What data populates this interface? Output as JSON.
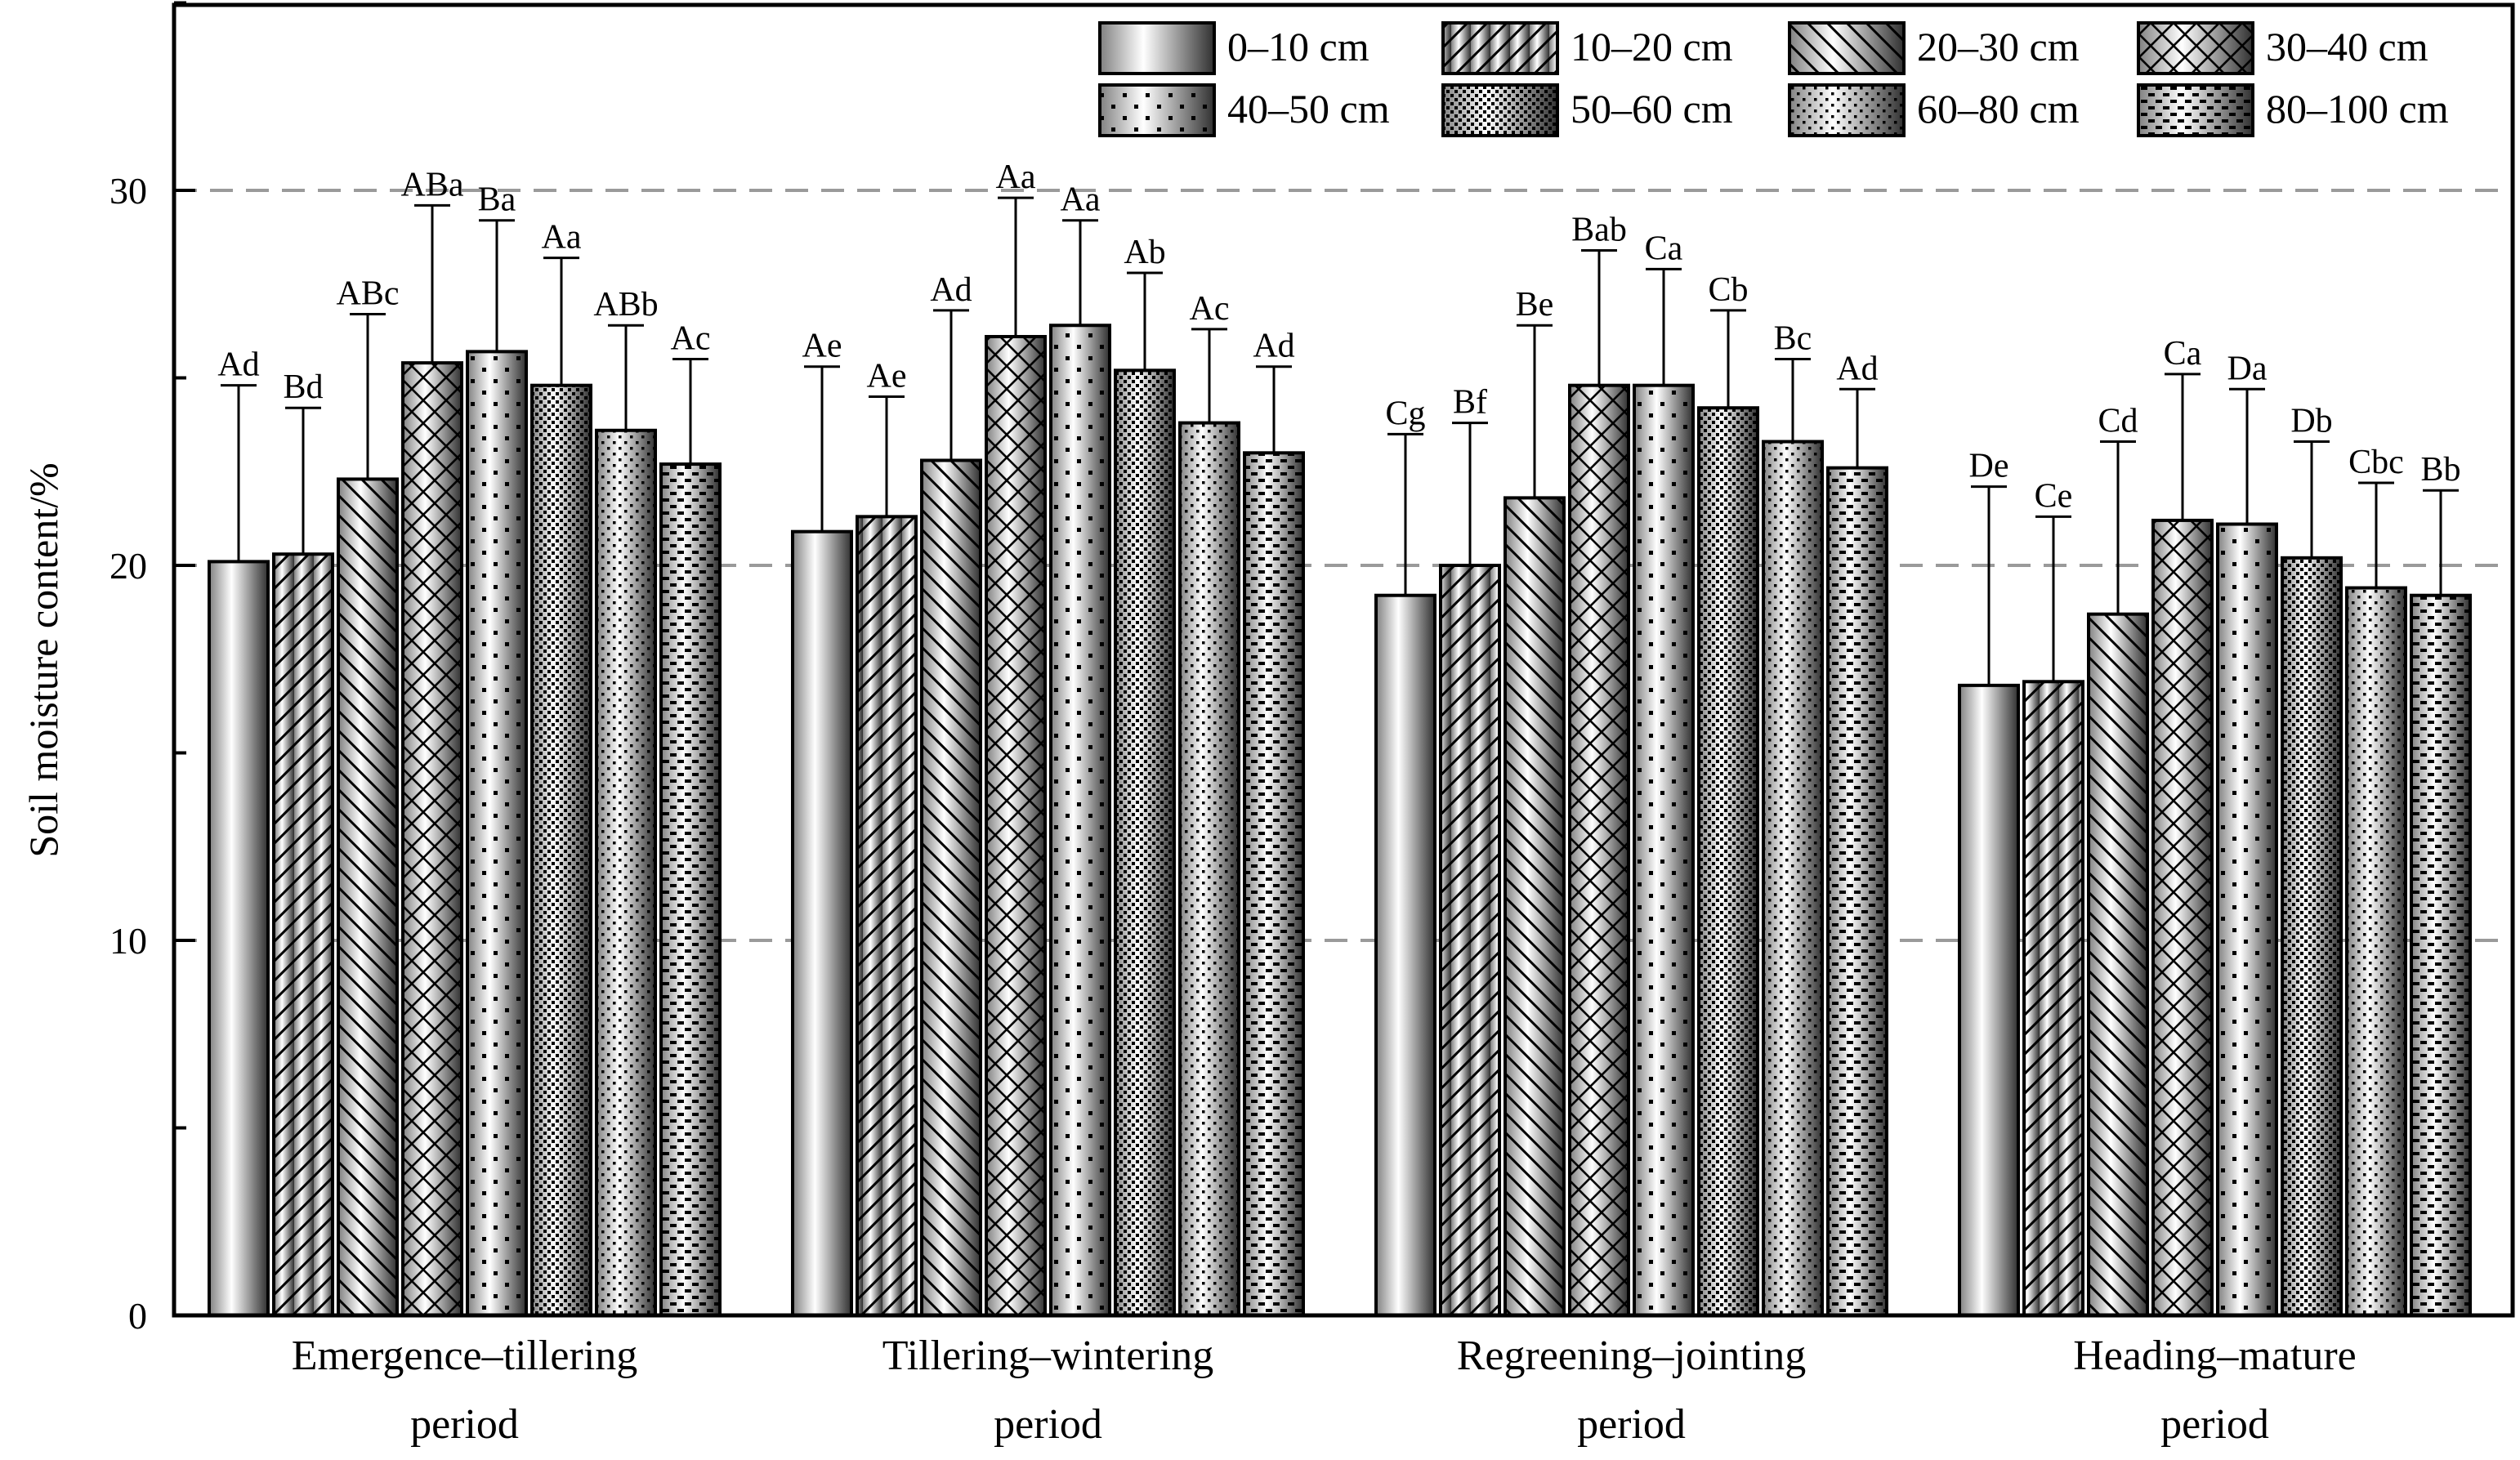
{
  "chart_data": {
    "type": "bar",
    "title": "",
    "xlabel": "",
    "ylabel": "Soil moisture content/%",
    "ylim": [
      0,
      35
    ],
    "yticks": [
      0,
      10,
      20,
      30
    ],
    "grid": "dashed horizontal at 10, 20, 30",
    "legend_position": "top-right",
    "categories": [
      [
        "Emergence–tillering",
        "period"
      ],
      [
        "Tillering–wintering",
        "period"
      ],
      [
        "Regreening–jointing",
        "period"
      ],
      [
        "Heading–mature",
        "period"
      ]
    ],
    "series": [
      {
        "name": "0–10 cm",
        "pattern": "gradient",
        "values": [
          20.1,
          20.9,
          19.2,
          16.8
        ],
        "errors": [
          4.7,
          4.4,
          4.3,
          5.3
        ],
        "labels": [
          "Ad",
          "Ae",
          "Cg",
          "De"
        ]
      },
      {
        "name": "10–20 cm",
        "pattern": "hatch-diag-right",
        "values": [
          20.3,
          21.3,
          20.0,
          16.9
        ],
        "errors": [
          3.9,
          3.2,
          3.8,
          4.4
        ],
        "labels": [
          "Bd",
          "Ae",
          "Bf",
          "Ce"
        ]
      },
      {
        "name": "20–30 cm",
        "pattern": "hatch-diag-left",
        "values": [
          22.3,
          22.8,
          21.8,
          18.7
        ],
        "errors": [
          4.4,
          4.0,
          4.6,
          4.6
        ],
        "labels": [
          "ABc",
          "Ad",
          "Be",
          "Cd"
        ]
      },
      {
        "name": "30–40 cm",
        "pattern": "crosshatch",
        "values": [
          25.4,
          26.1,
          24.8,
          21.2
        ],
        "errors": [
          4.2,
          3.7,
          3.6,
          3.9
        ],
        "labels": [
          "ABa",
          "Aa",
          "Bab",
          "Ca"
        ]
      },
      {
        "name": "40–50 cm",
        "pattern": "sparse-dots",
        "values": [
          25.7,
          26.4,
          24.8,
          21.1
        ],
        "errors": [
          3.5,
          2.8,
          3.1,
          3.6
        ],
        "labels": [
          "Ba",
          "Aa",
          "Ca",
          "Da"
        ]
      },
      {
        "name": "50–60 cm",
        "pattern": "dense-dots",
        "values": [
          24.8,
          25.2,
          24.2,
          20.2
        ],
        "errors": [
          3.4,
          2.6,
          2.6,
          3.1
        ],
        "labels": [
          "Aa",
          "Ab",
          "Cb",
          "Db"
        ]
      },
      {
        "name": "60–80 cm",
        "pattern": "fine-dots",
        "values": [
          23.6,
          23.8,
          23.3,
          19.4
        ],
        "errors": [
          2.8,
          2.5,
          2.2,
          2.8
        ],
        "labels": [
          "ABb",
          "Ac",
          "Bc",
          "Cbc"
        ]
      },
      {
        "name": "80–100 cm",
        "pattern": "dashes",
        "values": [
          22.7,
          23.0,
          22.6,
          19.2
        ],
        "errors": [
          2.8,
          2.3,
          2.1,
          2.8
        ],
        "labels": [
          "Ac",
          "Ad",
          "Ad",
          "Bb"
        ]
      }
    ]
  }
}
